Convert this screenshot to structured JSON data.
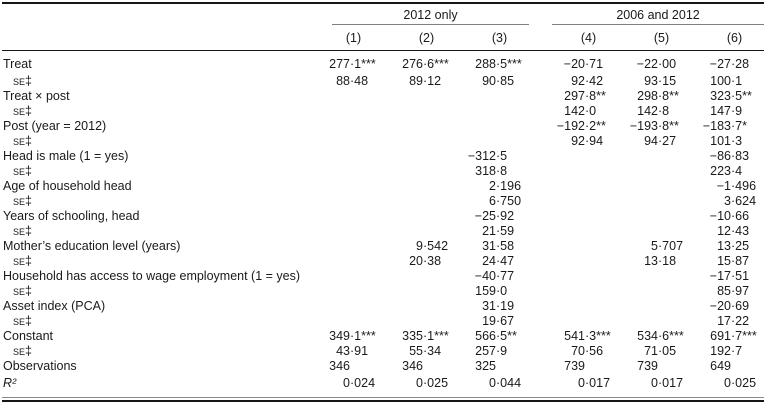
{
  "colors": {
    "text": "#1a1a1a",
    "rule": "#161616",
    "spanner_rule": "#808080",
    "background": "#ffffff"
  },
  "table": {
    "col_groups": [
      {
        "label": "2012 only",
        "cols": [
          "(1)",
          "(2)",
          "(3)"
        ]
      },
      {
        "label": "2006 and 2012",
        "cols": [
          "(4)",
          "(5)",
          "(6)"
        ]
      }
    ],
    "rows": [
      {
        "label": "Treat",
        "type": "coef",
        "values": [
          "277·1***",
          "276·6***",
          "288·5***",
          "−20·71",
          "−22·00",
          "−27·28"
        ]
      },
      {
        "label": "se‡",
        "type": "se",
        "values": [
          "88·48",
          "89·12",
          "90·85",
          "92·42",
          "93·15",
          "100·1"
        ]
      },
      {
        "label": "Treat × post",
        "type": "coef",
        "values": [
          "",
          "",
          "",
          "297·8**",
          "298·8**",
          "323·5**"
        ]
      },
      {
        "label": "se‡",
        "type": "se",
        "values": [
          "",
          "",
          "",
          "142·0",
          "142·8",
          "147·9"
        ]
      },
      {
        "label": "Post (year = 2012)",
        "type": "coef",
        "values": [
          "",
          "",
          "",
          "−192·2**",
          "−193·8**",
          "−183·7*"
        ]
      },
      {
        "label": "se‡",
        "type": "se",
        "values": [
          "",
          "",
          "",
          "92·94",
          "94·27",
          "101·3"
        ]
      },
      {
        "label": "Head is male (1 = yes)",
        "type": "coef",
        "values": [
          "",
          "",
          "−312·5",
          "",
          "",
          "−86·83"
        ]
      },
      {
        "label": "se‡",
        "type": "se",
        "values": [
          "",
          "",
          "318·8",
          "",
          "",
          "223·4"
        ]
      },
      {
        "label": "Age of household head",
        "type": "coef",
        "values": [
          "",
          "",
          "2·196",
          "",
          "",
          "−1·496"
        ]
      },
      {
        "label": "se‡",
        "type": "se",
        "values": [
          "",
          "",
          "6·750",
          "",
          "",
          "3·624"
        ]
      },
      {
        "label": "Years of schooling, head",
        "type": "coef",
        "values": [
          "",
          "",
          "−25·92",
          "",
          "",
          "−10·66"
        ]
      },
      {
        "label": "se‡",
        "type": "se",
        "values": [
          "",
          "",
          "21·59",
          "",
          "",
          "12·43"
        ]
      },
      {
        "label": "Mother’s education level (years)",
        "type": "coef",
        "values": [
          "",
          "9·542",
          "31·58",
          "",
          "5·707",
          "13·25"
        ]
      },
      {
        "label": "se‡",
        "type": "se",
        "values": [
          "",
          "20·38",
          "24·47",
          "",
          "13·18",
          "15·87"
        ]
      },
      {
        "label": "Household has access to wage employment (1 = yes)",
        "type": "coef",
        "values": [
          "",
          "",
          "−40·77",
          "",
          "",
          "−17·51"
        ]
      },
      {
        "label": "se‡",
        "type": "se",
        "values": [
          "",
          "",
          "159·0",
          "",
          "",
          "85·97"
        ]
      },
      {
        "label": "Asset index (PCA)",
        "type": "coef",
        "values": [
          "",
          "",
          "31·19",
          "",
          "",
          "−20·69"
        ]
      },
      {
        "label": "se‡",
        "type": "se",
        "values": [
          "",
          "",
          "19·67",
          "",
          "",
          "17·22"
        ]
      },
      {
        "label": "Constant",
        "type": "coef",
        "values": [
          "349·1***",
          "335·1***",
          "566·5**",
          "541·3***",
          "534·6***",
          "691·7***"
        ]
      },
      {
        "label": "se‡",
        "type": "se",
        "values": [
          "43·91",
          "55·34",
          "257·9",
          "70·56",
          "71·05",
          "192·7"
        ]
      },
      {
        "label": "Observations",
        "type": "coef",
        "values": [
          "346",
          "346",
          "325",
          "739",
          "739",
          "649"
        ]
      },
      {
        "label": "R²",
        "type": "r2",
        "values": [
          "0·024",
          "0·025",
          "0·044",
          "0·017",
          "0·017",
          "0·025"
        ]
      }
    ]
  }
}
